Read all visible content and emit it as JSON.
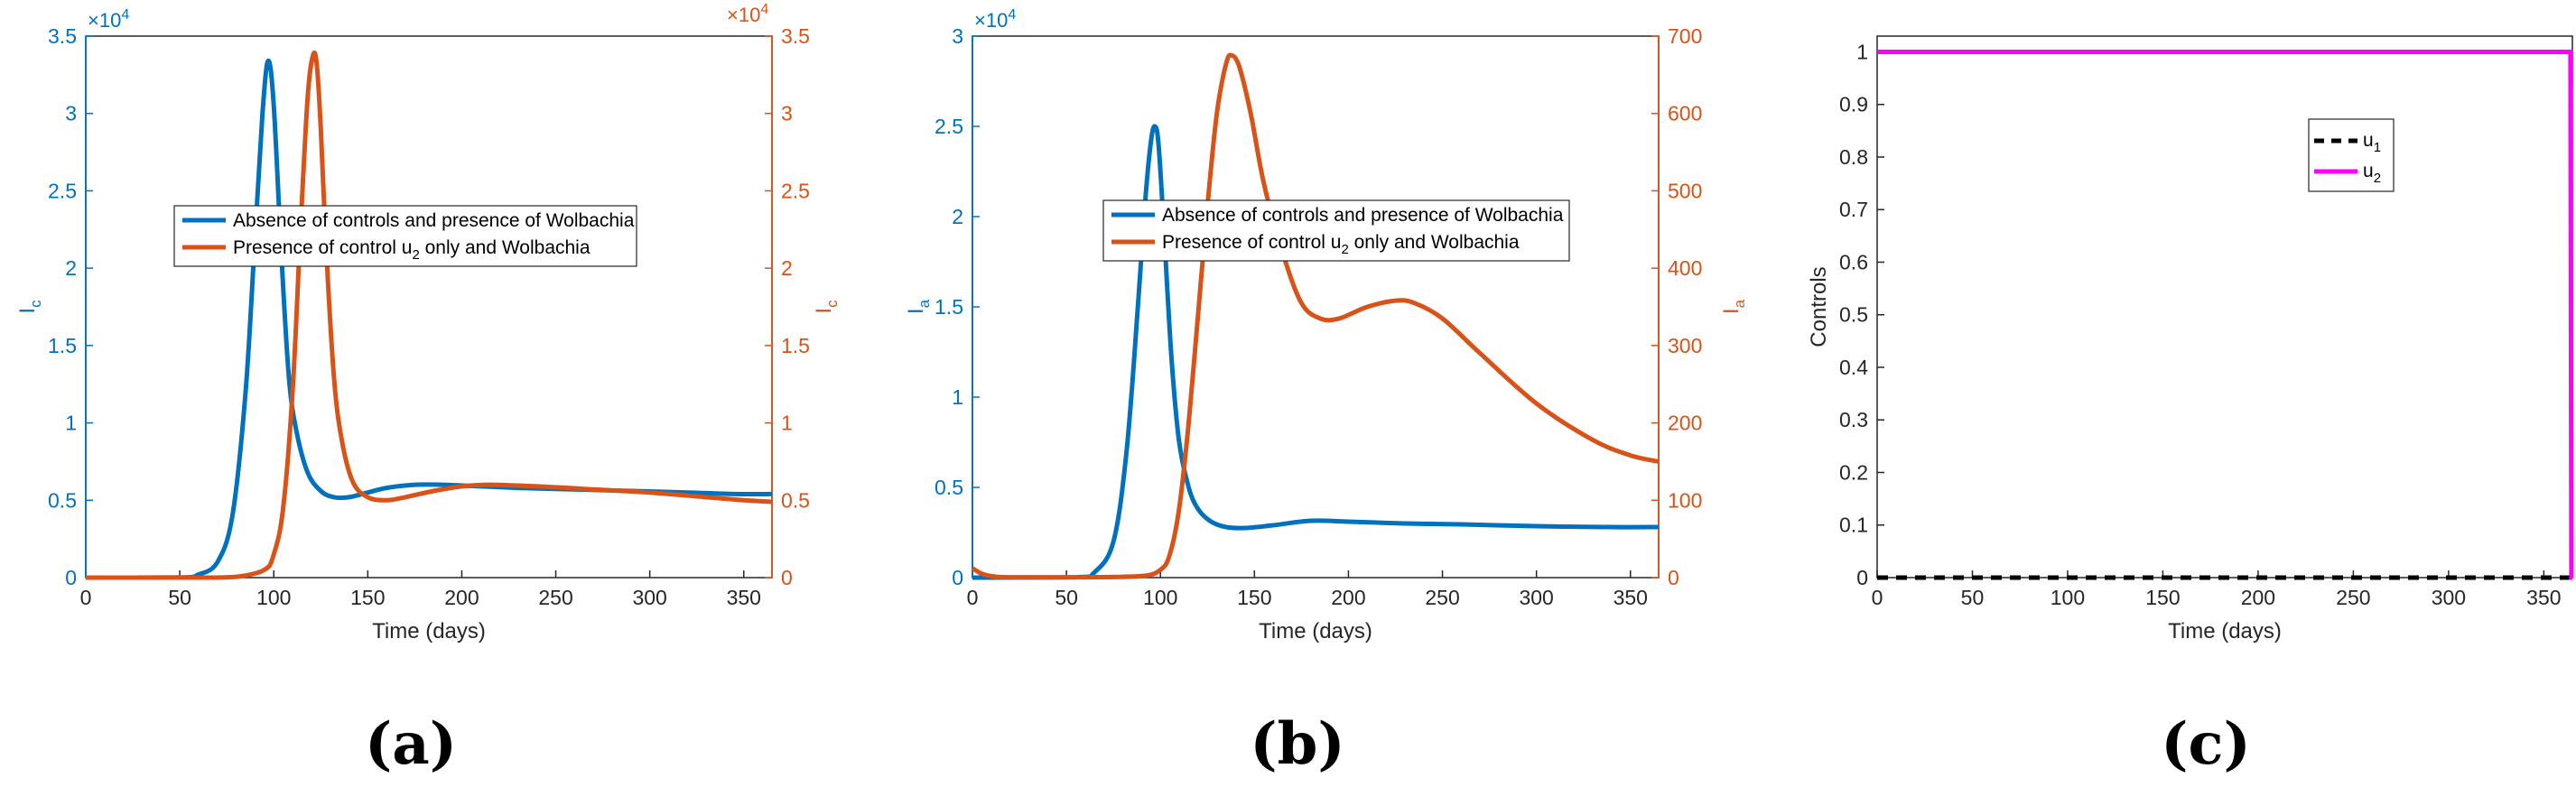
{
  "figure": {
    "captions": [
      "(a)",
      "(b)",
      "(c)"
    ]
  },
  "colors": {
    "blue": "#0072BD",
    "orange": "#D95319",
    "magenta": "#FF00FF",
    "black": "#000000",
    "axis": "#262626"
  },
  "chart_data": [
    {
      "type": "line",
      "panel": "(a)",
      "xlabel": "Time (days)",
      "xlim": [
        0,
        365
      ],
      "xticks": [
        0,
        50,
        100,
        150,
        200,
        250,
        300,
        350
      ],
      "ylabel_left": "I",
      "ylabel_left_sub": "c",
      "ylabel_right": "I",
      "ylabel_right_sub": "c",
      "ylim_left": [
        0,
        3.5
      ],
      "ylim_right": [
        0,
        3.5
      ],
      "yticks_left": [
        0,
        0.5,
        1,
        1.5,
        2,
        2.5,
        3,
        3.5
      ],
      "yticks_right": [
        0,
        0.5,
        1,
        1.5,
        2,
        2.5,
        3,
        3.5
      ],
      "exponent_left": "×10",
      "exponent_left_power": "4",
      "exponent_right": "×10",
      "exponent_right_power": "4",
      "series": [
        {
          "name": "Absence of controls and presence of Wolbachia",
          "legend_main": "Absence of controls and presence of Wolbachia",
          "axis": "left",
          "color": "#0072BD",
          "x": [
            0,
            50,
            60,
            70,
            78,
            85,
            90,
            94,
            97,
            100,
            104,
            108,
            112,
            118,
            125,
            132,
            140,
            150,
            160,
            175,
            190,
            210,
            230,
            260,
            290,
            320,
            345,
            365
          ],
          "y": [
            0,
            0.001,
            0.02,
            0.1,
            0.4,
            1.2,
            2.2,
            3.0,
            3.34,
            3.05,
            2.1,
            1.3,
            0.95,
            0.68,
            0.56,
            0.52,
            0.52,
            0.55,
            0.58,
            0.6,
            0.6,
            0.59,
            0.58,
            0.57,
            0.56,
            0.55,
            0.54,
            0.54
          ]
        },
        {
          "name": "Presence of control u2 only and Wolbachia",
          "legend_main": "Presence of control u",
          "legend_sub": "2",
          "legend_rest": " only and Wolbachia",
          "axis": "right",
          "color": "#D95319",
          "x": [
            0,
            60,
            80,
            95,
            100,
            105,
            110,
            114,
            118,
            121,
            123,
            125,
            128,
            132,
            136,
            142,
            150,
            160,
            170,
            185,
            200,
            215,
            240,
            270,
            300,
            330,
            350,
            365
          ],
          "y": [
            0,
            0,
            0.005,
            0.05,
            0.15,
            0.45,
            1.2,
            2.2,
            3.1,
            3.38,
            3.3,
            2.9,
            2.1,
            1.3,
            0.9,
            0.62,
            0.52,
            0.5,
            0.52,
            0.56,
            0.59,
            0.6,
            0.59,
            0.57,
            0.55,
            0.52,
            0.5,
            0.49
          ]
        }
      ]
    },
    {
      "type": "line",
      "panel": "(b)",
      "xlabel": "Time (days)",
      "xlim": [
        0,
        365
      ],
      "xticks": [
        0,
        50,
        100,
        150,
        200,
        250,
        300,
        350
      ],
      "ylabel_left": "I",
      "ylabel_left_sub": "a",
      "ylabel_right": "I",
      "ylabel_right_sub": "a",
      "ylim_left": [
        0,
        3
      ],
      "ylim_right": [
        0,
        700
      ],
      "yticks_left": [
        0,
        0.5,
        1,
        1.5,
        2,
        2.5,
        3
      ],
      "yticks_right": [
        0,
        100,
        200,
        300,
        400,
        500,
        600,
        700
      ],
      "exponent_left": "×10",
      "exponent_left_power": "4",
      "series": [
        {
          "name": "Absence of controls and presence of Wolbachia",
          "legend_main": "Absence of controls and presence of Wolbachia",
          "axis": "left",
          "color": "#0072BD",
          "x": [
            0,
            55,
            65,
            75,
            82,
            88,
            92,
            95,
            97,
            99,
            102,
            106,
            110,
            115,
            120,
            127,
            135,
            145,
            160,
            180,
            200,
            230,
            260,
            300,
            340,
            365
          ],
          "y": [
            0,
            0.002,
            0.03,
            0.2,
            0.7,
            1.5,
            2.1,
            2.42,
            2.5,
            2.4,
            1.9,
            1.2,
            0.75,
            0.5,
            0.38,
            0.31,
            0.28,
            0.275,
            0.29,
            0.315,
            0.31,
            0.3,
            0.295,
            0.285,
            0.28,
            0.28
          ]
        },
        {
          "name": "Presence of control u2 only and Wolbachia",
          "legend_main": "Presence of control u",
          "legend_sub": "2",
          "legend_rest": " only and Wolbachia",
          "axis": "right",
          "color": "#D95319",
          "x": [
            0,
            5,
            10,
            20,
            60,
            90,
            100,
            105,
            110,
            115,
            120,
            125,
            130,
            135,
            138,
            142,
            148,
            155,
            165,
            175,
            185,
            195,
            210,
            225,
            235,
            250,
            270,
            300,
            330,
            350,
            365
          ],
          "y": [
            12,
            5,
            2,
            0.5,
            0.5,
            2,
            10,
            30,
            90,
            200,
            340,
            480,
            600,
            665,
            675,
            660,
            600,
            510,
            420,
            355,
            335,
            335,
            350,
            358,
            355,
            335,
            290,
            225,
            178,
            158,
            150
          ]
        }
      ]
    },
    {
      "type": "line",
      "panel": "(c)",
      "xlabel": "Time (days)",
      "ylabel": "Controls",
      "xlim": [
        0,
        365
      ],
      "xticks": [
        0,
        50,
        100,
        150,
        200,
        250,
        300,
        350
      ],
      "ylim": [
        0,
        1.03
      ],
      "yticks": [
        0,
        0.1,
        0.2,
        0.3,
        0.4,
        0.5,
        0.6,
        0.7,
        0.8,
        0.9,
        1
      ],
      "series": [
        {
          "name": "u1",
          "legend_main": "u",
          "legend_sub": "1",
          "color": "#000000",
          "dash": "dashed",
          "x": [
            0,
            365
          ],
          "y": [
            0,
            0
          ]
        },
        {
          "name": "u2",
          "legend_main": "u",
          "legend_sub": "2",
          "color": "#FF00FF",
          "dash": "solid",
          "x": [
            0,
            364,
            364.5,
            365
          ],
          "y": [
            1,
            1,
            0,
            0
          ]
        }
      ]
    }
  ]
}
